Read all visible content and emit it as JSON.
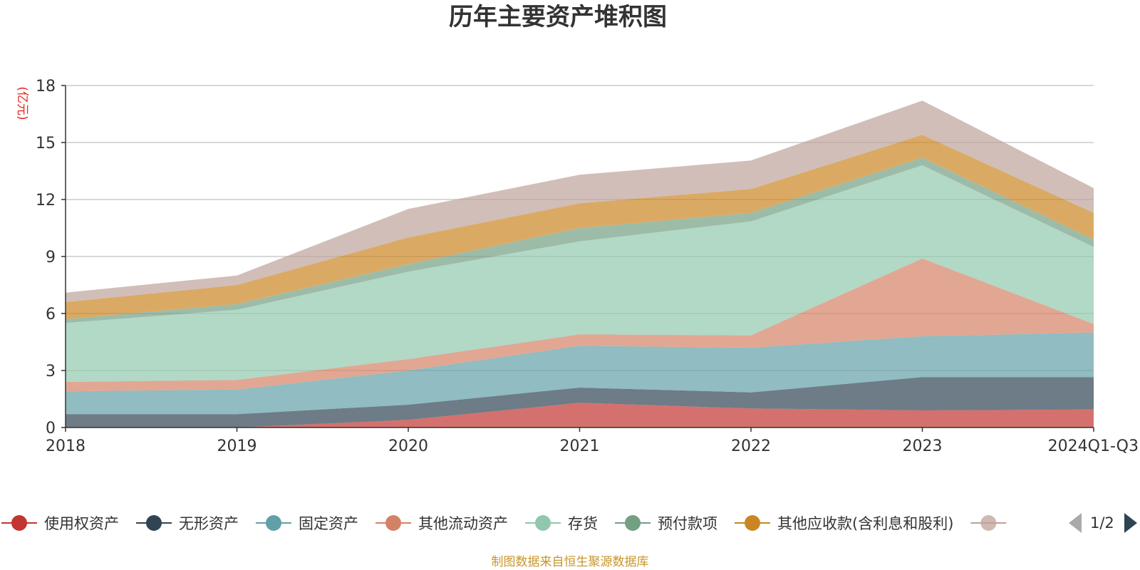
{
  "chart_data": {
    "type": "area",
    "stacked": true,
    "title": "历年主要资产堆积图",
    "unit_label": "(亿元)",
    "categories": [
      "2018",
      "2019",
      "2020",
      "2021",
      "2022",
      "2023",
      "2024Q1-Q3"
    ],
    "ylim": [
      0,
      18
    ],
    "yticks": [
      "0",
      "3",
      "6",
      "9",
      "12",
      "15",
      "18"
    ],
    "grid": true,
    "legend_position": "bottom",
    "series": [
      {
        "name": "使用权资产",
        "color": "#c23531",
        "values": [
          0.0,
          0.0,
          0.4,
          1.3,
          1.0,
          0.9,
          0.95
        ]
      },
      {
        "name": "无形资产",
        "color": "#2f4554",
        "values": [
          0.7,
          0.7,
          0.8,
          0.8,
          0.85,
          1.75,
          1.7
        ]
      },
      {
        "name": "固定资产",
        "color": "#61a0a8",
        "values": [
          1.2,
          1.3,
          1.8,
          2.2,
          2.35,
          2.15,
          2.35
        ]
      },
      {
        "name": "其他流动资产",
        "color": "#d48265",
        "values": [
          0.5,
          0.5,
          0.6,
          0.6,
          0.65,
          4.1,
          0.45
        ]
      },
      {
        "name": "存货",
        "color": "#91c7ae",
        "values": [
          3.1,
          3.7,
          4.6,
          4.9,
          6.0,
          4.9,
          4.05
        ]
      },
      {
        "name": "预付款项",
        "color": "#749f83",
        "values": [
          0.2,
          0.3,
          0.4,
          0.7,
          0.45,
          0.4,
          0.4
        ]
      },
      {
        "name": "其他应收款(含利息和股利)",
        "color": "#ca8622",
        "values": [
          0.9,
          1.0,
          1.4,
          1.3,
          1.25,
          1.2,
          1.4
        ]
      },
      {
        "name": "",
        "color": "#bda29a",
        "values": [
          0.5,
          0.5,
          1.5,
          1.5,
          1.5,
          1.8,
          1.3
        ]
      }
    ],
    "pagination": "1/2",
    "source_note": "制图数据来自恒生聚源数据库"
  }
}
